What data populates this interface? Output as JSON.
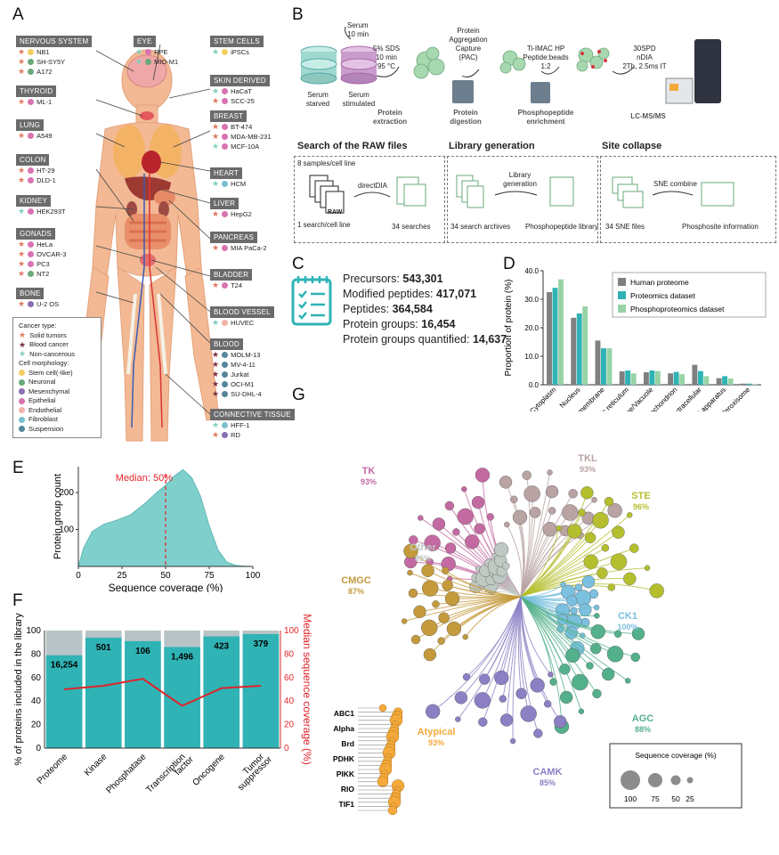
{
  "panels": {
    "a": "A",
    "b": "B",
    "c": "C",
    "d": "D",
    "e": "E",
    "f": "F",
    "g": "G"
  },
  "colors": {
    "teal": "#2fb3b5",
    "gray": "#808080",
    "lightgreen": "#97d3a6",
    "red": "#e0242a",
    "orange": "#f4a93a",
    "tk": "#c46aa2",
    "tkl": "#b9a3a3",
    "ste": "#b5bf2e",
    "ck1": "#7bc0df",
    "agc": "#53b08b",
    "camk": "#8c7fc4",
    "cmgc": "#c49a3c",
    "other": "#bfc8c2"
  },
  "panelA": {
    "groups": [
      {
        "title": "NERVOUS SYSTEM",
        "items": [
          {
            "name": "NB1",
            "marks": [
              "solid",
              "stem"
            ]
          },
          {
            "name": "SH-SY5Y",
            "marks": [
              "solid",
              "neuronal"
            ]
          },
          {
            "name": "A172",
            "marks": [
              "solid",
              "neuronal"
            ]
          }
        ]
      },
      {
        "title": "THYROID",
        "items": [
          {
            "name": "ML-1",
            "marks": [
              "solid",
              "epithelial"
            ]
          }
        ]
      },
      {
        "title": "LUNG",
        "items": [
          {
            "name": "A549",
            "marks": [
              "solid",
              "epithelial"
            ]
          }
        ]
      },
      {
        "title": "COLON",
        "items": [
          {
            "name": "HT-29",
            "marks": [
              "solid",
              "epithelial"
            ]
          },
          {
            "name": "DLD-1",
            "marks": [
              "solid",
              "epithelial"
            ]
          }
        ]
      },
      {
        "title": "KIDNEY",
        "items": [
          {
            "name": "HEK293T",
            "marks": [
              "noncancer",
              "epithelial"
            ]
          }
        ]
      },
      {
        "title": "GONADS",
        "items": [
          {
            "name": "HeLa",
            "marks": [
              "solid",
              "epithelial"
            ]
          },
          {
            "name": "OVCAR-3",
            "marks": [
              "solid",
              "epithelial"
            ]
          },
          {
            "name": "PC3",
            "marks": [
              "solid",
              "epithelial"
            ]
          },
          {
            "name": "NT2",
            "marks": [
              "solid",
              "neuronal"
            ]
          }
        ]
      },
      {
        "title": "BONE",
        "items": [
          {
            "name": "U-2 OS",
            "marks": [
              "solid",
              "mesenchymal"
            ]
          }
        ]
      },
      {
        "title": "EYE",
        "items": [
          {
            "name": "RPE",
            "marks": [
              "noncancer",
              "epithelial"
            ]
          },
          {
            "name": "MIO-M1",
            "marks": [
              "noncancer",
              "neuronal"
            ]
          }
        ]
      },
      {
        "title": "STEM CELLS",
        "items": [
          {
            "name": "iPSCs",
            "marks": [
              "noncancer",
              "stem"
            ]
          }
        ]
      },
      {
        "title": "SKIN DERIVED",
        "items": [
          {
            "name": "HaCaT",
            "marks": [
              "noncancer",
              "epithelial"
            ]
          },
          {
            "name": "SCC-25",
            "marks": [
              "solid",
              "epithelial"
            ]
          }
        ]
      },
      {
        "title": "BREAST",
        "items": [
          {
            "name": "BT-474",
            "marks": [
              "solid",
              "epithelial"
            ]
          },
          {
            "name": "MDA-MB-231",
            "marks": [
              "solid",
              "epithelial"
            ]
          },
          {
            "name": "MCF-10A",
            "marks": [
              "noncancer",
              "epithelial"
            ]
          }
        ]
      },
      {
        "title": "HEART",
        "items": [
          {
            "name": "HCM",
            "marks": [
              "noncancer",
              "fibroblast"
            ]
          }
        ]
      },
      {
        "title": "LIVER",
        "items": [
          {
            "name": "HepG2",
            "marks": [
              "solid",
              "epithelial"
            ]
          }
        ]
      },
      {
        "title": "PANCREAS",
        "items": [
          {
            "name": "MIA PaCa-2",
            "marks": [
              "solid",
              "epithelial"
            ]
          }
        ]
      },
      {
        "title": "BLADDER",
        "items": [
          {
            "name": "T24",
            "marks": [
              "solid",
              "epithelial"
            ]
          }
        ]
      },
      {
        "title": "BLOOD VESSEL",
        "items": [
          {
            "name": "HUVEC",
            "marks": [
              "noncancer",
              "endothelial"
            ]
          }
        ]
      },
      {
        "title": "BLOOD",
        "items": [
          {
            "name": "MOLM-13",
            "marks": [
              "blood",
              "suspension"
            ]
          },
          {
            "name": "MV-4-11",
            "marks": [
              "blood",
              "suspension"
            ]
          },
          {
            "name": "Jurkat",
            "marks": [
              "blood",
              "suspension"
            ]
          },
          {
            "name": "OCI-M1",
            "marks": [
              "blood",
              "suspension"
            ]
          },
          {
            "name": "SU-DHL-4",
            "marks": [
              "blood",
              "suspension"
            ]
          }
        ]
      },
      {
        "title": "CONNECTIVE TISSUE",
        "items": [
          {
            "name": "HFF-1",
            "marks": [
              "noncancer",
              "fibroblast"
            ]
          },
          {
            "name": "RD",
            "marks": [
              "solid",
              "mesenchymal"
            ]
          }
        ]
      }
    ],
    "legend": {
      "cancer_title": "Cancer type:",
      "cancer": [
        {
          "label": "Solid tumors",
          "color": "#e07a63"
        },
        {
          "label": "Blood cancer",
          "color": "#7a3142"
        },
        {
          "label": "Non-cancerous",
          "color": "#7fcfc1"
        }
      ],
      "morph_title": "Cell morphology:",
      "morph": [
        {
          "label": "Stem cell(-like)",
          "color": "#f3cf63"
        },
        {
          "label": "Neuronal",
          "color": "#6aa97a"
        },
        {
          "label": "Mesenchymal",
          "color": "#8a6fb3"
        },
        {
          "label": "Epithelial",
          "color": "#d873b2"
        },
        {
          "label": "Endothelial",
          "color": "#f1b2a6"
        },
        {
          "label": "Fibroblast",
          "color": "#7bbfcf"
        },
        {
          "label": "Suspension",
          "color": "#56869a"
        }
      ]
    }
  },
  "panelB": {
    "serum": "Serum\n10 min",
    "starved": "Serum\nstarved",
    "stimulated": "Serum\nstimulated",
    "sds": "5% SDS\n10 min\n95 °C",
    "pac": "Protein\nAggregation\nCapture\n(PAC)",
    "timac": "Ti-IMAC HP\nPeptide:beads\n1:2",
    "spd": "30SPD\nnDIA\n2Th, 2.5ms IT",
    "step1": "Protein\nextraction",
    "step2": "Protein\ndigestion",
    "step3": "Phosphopeptide\nenrichment",
    "step4": "LC-MS/MS",
    "sec1": "Search of the RAW files",
    "sec2": "Library generation",
    "sec3": "Site collapse",
    "samples": "8 samples/cell line",
    "raw": "RAW",
    "directdia": "directDIA",
    "onesearch": "1 search/cell line",
    "searches": "34 searches",
    "archives": "34 search archives",
    "libgen": "Library\ngeneration",
    "phlib": "Phosphopeptide library",
    "snefiles": "34 SNE files",
    "snecombine": "SNE combine",
    "siteinfo": "Phosphosite information"
  },
  "panelC": {
    "rows": [
      {
        "label": "Precursors: ",
        "value": "543,301"
      },
      {
        "label": "Modified peptides: ",
        "value": "417,071"
      },
      {
        "label": "Peptides: ",
        "value": "364,584"
      },
      {
        "label": "Protein groups: ",
        "value": "16,454"
      },
      {
        "label": "Protein groups quantified: ",
        "value": "14,637"
      }
    ]
  },
  "chart_data": [
    {
      "id": "D",
      "type": "bar",
      "ylabel": "Proportion of protein (%)",
      "ylim": [
        0,
        40
      ],
      "yticks": [
        "0.0",
        "10.0",
        "20.0",
        "30.0",
        "40.0"
      ],
      "categories": [
        "Cytoplasm",
        "Nucleus",
        "Cell membrane",
        "Endoplasmic reticulum",
        "Lysosome/Vacuole",
        "Mitochondrion",
        "Extracellular",
        "Golgi apparatus",
        "Peroxisome"
      ],
      "series": [
        {
          "name": "Human proteome",
          "color": "#808080",
          "values": [
            32.5,
            23.5,
            15.5,
            4.7,
            4.4,
            4.0,
            7.0,
            2.3,
            0.4
          ]
        },
        {
          "name": "Proteomics dataset",
          "color": "#2fb3b5",
          "values": [
            34.0,
            25.0,
            12.8,
            5.0,
            5.0,
            4.5,
            4.8,
            3.0,
            0.4
          ]
        },
        {
          "name": "Phosphoproteomics dataset",
          "color": "#97d3a6",
          "values": [
            37.0,
            27.5,
            12.8,
            4.0,
            4.8,
            3.7,
            3.0,
            2.2,
            0.2
          ]
        }
      ]
    },
    {
      "id": "E",
      "type": "area",
      "xlabel": "Sequence coverage (%)",
      "ylabel": "Protein group count",
      "xlim": [
        0,
        100
      ],
      "ylim": [
        0,
        270
      ],
      "xticks": [
        "0",
        "25",
        "50",
        "75",
        "100"
      ],
      "yticks": [
        "100",
        "200"
      ],
      "annotation": "Median: 50%",
      "median": 50,
      "x": [
        0,
        3,
        8,
        15,
        22,
        30,
        38,
        45,
        50,
        55,
        60,
        65,
        70,
        75,
        80,
        85,
        90,
        95,
        100
      ],
      "y": [
        0,
        50,
        95,
        115,
        125,
        140,
        170,
        200,
        220,
        245,
        262,
        240,
        190,
        110,
        45,
        12,
        3,
        1,
        0
      ]
    },
    {
      "id": "F",
      "type": "bar",
      "ylabel": "% of proteins included in the library",
      "y2label": "Median sequence coverage (%)",
      "ylim": [
        0,
        100
      ],
      "yticks": [
        "0",
        "20",
        "40",
        "60",
        "80",
        "100"
      ],
      "categories": [
        "Proteome",
        "Kinase",
        "Phosphatase",
        "Transcription factor",
        "Oncogene",
        "Tumor suppressor"
      ],
      "category_lines": [
        [
          "Proteome"
        ],
        [
          "Kinase"
        ],
        [
          "Phosphatase"
        ],
        [
          "Transcription",
          "factor"
        ],
        [
          "Oncogene"
        ],
        [
          "Tumor",
          "suppressor"
        ]
      ],
      "included": [
        79,
        94,
        91,
        86,
        95,
        97
      ],
      "counts": [
        "16,254",
        "501",
        "106",
        "1,496",
        "423",
        "379"
      ],
      "median_coverage": [
        50,
        53,
        59,
        36,
        51,
        53
      ]
    }
  ],
  "panelG": {
    "groups": [
      {
        "name": "TK",
        "pct": "93%",
        "color": "#c46aa2"
      },
      {
        "name": "TKL",
        "pct": "93%",
        "color": "#b9a3a3"
      },
      {
        "name": "STE",
        "pct": "96%",
        "color": "#b5bf2e"
      },
      {
        "name": "Other",
        "pct": "85%",
        "color": "#bfc8c2"
      },
      {
        "name": "CMGC",
        "pct": "87%",
        "color": "#c49a3c"
      },
      {
        "name": "CK1",
        "pct": "100%",
        "color": "#7bc0df"
      },
      {
        "name": "AGC",
        "pct": "88%",
        "color": "#53b08b"
      },
      {
        "name": "CAMK",
        "pct": "85%",
        "color": "#8c7fc4"
      },
      {
        "name": "Atypical",
        "pct": "93%",
        "color": "#f4a93a"
      }
    ],
    "atypical_labels": [
      "ABC1",
      "Alpha",
      "Brd",
      "PDHK",
      "PIKK",
      "RIO",
      "TIF1"
    ],
    "legend_title": "Sequence coverage (%)",
    "legend_sizes": [
      "100",
      "75",
      "50",
      "25"
    ]
  }
}
